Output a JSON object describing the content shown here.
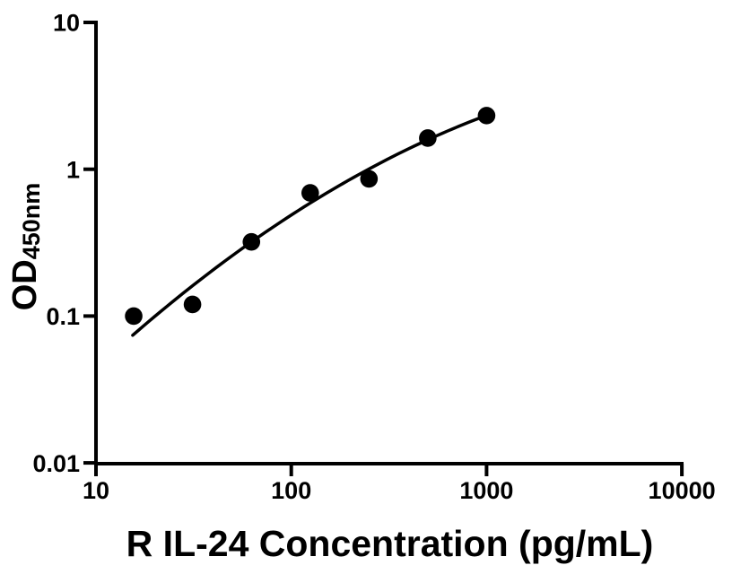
{
  "figure": {
    "background": "#ffffff",
    "ink_color": "#000000"
  },
  "chart_data": {
    "type": "scatter",
    "title": "",
    "xlabel": "R IL-24 Concentration (pg/mL)",
    "ylabel": "OD",
    "ylabel_subscript": "450nm",
    "x_scale": "log",
    "y_scale": "log",
    "xlim": [
      10,
      10000
    ],
    "ylim": [
      0.01,
      10
    ],
    "x_ticks": [
      10,
      100,
      1000,
      10000
    ],
    "x_tick_labels": [
      "10",
      "100",
      "1000",
      "10000"
    ],
    "y_ticks": [
      10,
      1,
      0.1,
      0.01
    ],
    "y_tick_labels": [
      "10",
      "1",
      "0.1",
      "0.01"
    ],
    "grid": false,
    "legend": false,
    "series": [
      {
        "name": "standard-points",
        "type": "scatter",
        "marker": "filled-circle",
        "color": "#000000",
        "points": [
          {
            "x": 15.6,
            "y": 0.1
          },
          {
            "x": 31.2,
            "y": 0.12
          },
          {
            "x": 62.5,
            "y": 0.32
          },
          {
            "x": 125,
            "y": 0.69
          },
          {
            "x": 250,
            "y": 0.86
          },
          {
            "x": 500,
            "y": 1.63
          },
          {
            "x": 1000,
            "y": 2.32
          }
        ]
      },
      {
        "name": "fitted-curve",
        "type": "line",
        "color": "#000000",
        "fit": {
          "model": "quadratic-loglog",
          "A": -2.7609,
          "B": 1.5881,
          "C": -0.18184,
          "logx_start": 1.188,
          "logx_end": 3.0
        }
      }
    ]
  }
}
